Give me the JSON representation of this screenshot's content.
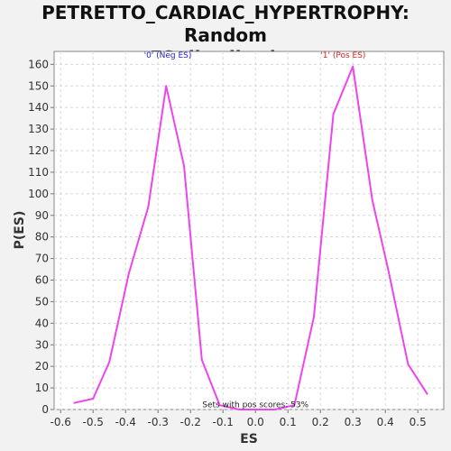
{
  "title_line1": "PETRETTO_CARDIAC_HYPERTROPHY: Random",
  "title_line2": "ES distribution",
  "chart_data": {
    "type": "line",
    "title": "PETRETTO_CARDIAC_HYPERTROPHY: Random ES distribution",
    "xlabel": "ES",
    "ylabel": "P(ES)",
    "xlim": [
      -0.62,
      0.58
    ],
    "ylim": [
      0,
      166
    ],
    "grid": true,
    "x_ticks": [
      -0.6,
      -0.5,
      -0.4,
      -0.3,
      -0.2,
      -0.1,
      0.0,
      0.1,
      0.2,
      0.3,
      0.4,
      0.5
    ],
    "x_tick_labels": [
      "-0.6",
      "-0.5",
      "-0.4",
      "-0.3",
      "-0.2",
      "-0.1",
      "0.0",
      "0.1",
      "0.2",
      "0.3",
      "0.4",
      "0.5"
    ],
    "y_ticks": [
      0,
      10,
      20,
      30,
      40,
      50,
      60,
      70,
      80,
      90,
      100,
      110,
      120,
      130,
      140,
      150,
      160
    ],
    "y_tick_labels": [
      "0",
      "10",
      "20",
      "30",
      "40",
      "50",
      "60",
      "70",
      "80",
      "90",
      "100",
      "110",
      "120",
      "130",
      "140",
      "150",
      "160"
    ],
    "line_color": "#ee44ee",
    "series": [
      {
        "x": [
          -0.56,
          -0.5,
          -0.45,
          -0.39,
          -0.33,
          -0.275,
          -0.22,
          -0.165,
          -0.11,
          -0.05,
          0.0,
          0.06,
          0.12,
          0.18,
          0.24,
          0.3,
          0.36,
          0.41,
          0.47,
          0.53
        ],
        "values": [
          3,
          5,
          22,
          63,
          94,
          150,
          113,
          23,
          2,
          0,
          0,
          0,
          2,
          43,
          137,
          159,
          97,
          64,
          21,
          7
        ]
      }
    ],
    "annotations": [
      {
        "text": "'0' (Neg ES)",
        "x": -0.27,
        "y": 163,
        "color": "#2222cc"
      },
      {
        "text": "'1' (Pos ES)",
        "x": 0.27,
        "y": 163,
        "color": "#dd2222"
      },
      {
        "text": "Sets with pos scores: 53%",
        "x": 0.0,
        "y": 1,
        "color": "#222222"
      }
    ]
  }
}
